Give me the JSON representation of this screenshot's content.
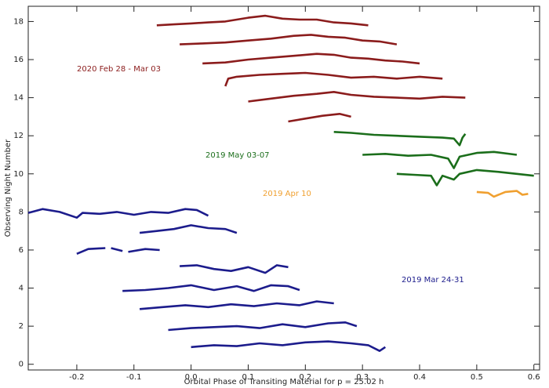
{
  "chart_data": {
    "type": "line",
    "x_label": "Orbital Phase of Transiting Material for p = 25.02 h",
    "y_label": "Observing Night Number",
    "xlim": [
      -0.285,
      0.61
    ],
    "ylim": [
      -0.3,
      18.8
    ],
    "xticks": [
      -0.2,
      -0.1,
      {
        "value": 0,
        "label": "0.0"
      },
      0.1,
      0.2,
      0.3,
      0.4,
      0.5,
      0.6
    ],
    "yticks": [
      0,
      2,
      4,
      6,
      8,
      10,
      12,
      14,
      16,
      18
    ],
    "series": [
      {
        "name": "2020 Feb 28 - Mar 03",
        "color": "#8b1c1c",
        "curves": [
          {
            "x": [
              -0.06,
              -0.03,
              0,
              0.03,
              0.06,
              0.1,
              0.13,
              0.16,
              0.19,
              0.22,
              0.25,
              0.28,
              0.31
            ],
            "values": [
              17.8,
              17.85,
              17.9,
              17.95,
              18.0,
              18.2,
              18.3,
              18.15,
              18.1,
              18.1,
              17.95,
              17.9,
              17.8
            ]
          },
          {
            "x": [
              -0.02,
              0.02,
              0.06,
              0.1,
              0.14,
              0.18,
              0.21,
              0.24,
              0.27,
              0.3,
              0.33,
              0.36
            ],
            "values": [
              16.8,
              16.85,
              16.9,
              17.0,
              17.1,
              17.25,
              17.3,
              17.2,
              17.15,
              17.0,
              16.95,
              16.8
            ]
          },
          {
            "x": [
              0.02,
              0.06,
              0.1,
              0.14,
              0.18,
              0.22,
              0.25,
              0.28,
              0.31,
              0.34,
              0.37,
              0.4
            ],
            "values": [
              15.8,
              15.85,
              16.0,
              16.1,
              16.2,
              16.3,
              16.25,
              16.1,
              16.05,
              15.95,
              15.9,
              15.8
            ]
          },
          {
            "x": [
              0.06,
              0.065,
              0.08,
              0.12,
              0.16,
              0.2,
              0.24,
              0.28,
              0.32,
              0.36,
              0.4,
              0.44
            ],
            "values": [
              14.6,
              15.0,
              15.1,
              15.2,
              15.25,
              15.3,
              15.2,
              15.05,
              15.1,
              15.0,
              15.1,
              15.0
            ]
          },
          {
            "x": [
              0.1,
              0.14,
              0.18,
              0.22,
              0.25,
              0.28,
              0.32,
              0.36,
              0.4,
              0.44,
              0.48
            ],
            "values": [
              13.8,
              13.95,
              14.1,
              14.2,
              14.3,
              14.15,
              14.05,
              14.0,
              13.95,
              14.05,
              14.0
            ]
          },
          {
            "x": [
              0.17,
              0.2,
              0.23,
              0.26,
              0.28
            ],
            "values": [
              12.75,
              12.9,
              13.05,
              13.15,
              13.0
            ]
          }
        ]
      },
      {
        "name": "2019 May 03-07",
        "color": "#1b6e1b",
        "curves": [
          {
            "x": [
              0.25,
              0.28,
              0.32,
              0.36,
              0.4,
              0.44,
              0.46,
              0.47,
              0.475,
              0.48
            ],
            "values": [
              12.2,
              12.15,
              12.05,
              12.0,
              11.95,
              11.9,
              11.85,
              11.5,
              11.9,
              12.1
            ]
          },
          {
            "x": [
              0.3,
              0.34,
              0.38,
              0.42,
              0.45,
              0.46,
              0.47,
              0.5,
              0.53,
              0.57
            ],
            "values": [
              11.0,
              11.05,
              10.95,
              11.0,
              10.8,
              10.3,
              10.9,
              11.1,
              11.15,
              11.0
            ]
          },
          {
            "x": [
              0.36,
              0.39,
              0.42,
              0.43,
              0.44,
              0.46,
              0.47,
              0.5,
              0.54,
              0.57,
              0.6
            ],
            "values": [
              10.0,
              9.95,
              9.9,
              9.4,
              9.9,
              9.7,
              10.0,
              10.2,
              10.1,
              10.0,
              9.9
            ]
          }
        ]
      },
      {
        "name": "2019 Apr 10",
        "color": "#f0a030",
        "curves": [
          {
            "x": [
              0.5,
              0.52,
              0.53,
              0.55,
              0.57,
              0.58,
              0.59
            ],
            "values": [
              9.05,
              9.0,
              8.8,
              9.05,
              9.1,
              8.9,
              8.95
            ]
          }
        ]
      },
      {
        "name": "2019 Mar 24-31",
        "color": "#1c1c8c",
        "curves": [
          {
            "x": [
              -0.285,
              -0.26,
              -0.23,
              -0.2,
              -0.19,
              -0.16,
              -0.13,
              -0.1,
              -0.07,
              -0.04,
              -0.01,
              0.01,
              0.03
            ],
            "values": [
              7.95,
              8.15,
              8.0,
              7.7,
              7.95,
              7.9,
              8.0,
              7.85,
              8.0,
              7.95,
              8.15,
              8.1,
              7.8
            ]
          },
          {
            "x": [
              -0.09,
              -0.06,
              -0.03,
              0,
              0.03,
              0.06,
              0.08
            ],
            "values": [
              6.9,
              7.0,
              7.1,
              7.3,
              7.15,
              7.1,
              6.9
            ]
          },
          {
            "x": [
              -0.2,
              -0.18,
              -0.15,
              null,
              -0.14,
              -0.12,
              null,
              -0.11,
              -0.08,
              -0.055
            ],
            "values": [
              5.8,
              6.05,
              6.1,
              null,
              6.1,
              5.95,
              null,
              5.9,
              6.05,
              6.0
            ]
          },
          {
            "x": [
              -0.02,
              0.01,
              0.04,
              0.07,
              0.1,
              0.13,
              0.15,
              0.17
            ],
            "values": [
              5.15,
              5.2,
              5.0,
              4.9,
              5.1,
              4.8,
              5.2,
              5.1
            ]
          },
          {
            "x": [
              -0.12,
              -0.08,
              -0.04,
              0,
              0.04,
              0.08,
              0.11,
              0.14,
              0.17,
              0.19
            ],
            "values": [
              3.85,
              3.9,
              4.0,
              4.15,
              3.9,
              4.1,
              3.85,
              4.15,
              4.1,
              3.9
            ]
          },
          {
            "x": [
              -0.09,
              -0.05,
              -0.01,
              0.03,
              0.07,
              0.11,
              0.15,
              0.19,
              0.22,
              0.25
            ],
            "values": [
              2.9,
              3.0,
              3.1,
              3.0,
              3.15,
              3.05,
              3.2,
              3.1,
              3.3,
              3.2
            ]
          },
          {
            "x": [
              -0.04,
              0,
              0.04,
              0.08,
              0.12,
              0.16,
              0.2,
              0.24,
              0.27,
              0.29
            ],
            "values": [
              1.8,
              1.9,
              1.95,
              2.0,
              1.9,
              2.1,
              1.95,
              2.15,
              2.2,
              2.0
            ]
          },
          {
            "x": [
              0,
              0.04,
              0.08,
              0.12,
              0.16,
              0.2,
              0.24,
              0.28,
              0.31,
              0.33,
              0.34
            ],
            "values": [
              0.9,
              1.0,
              0.95,
              1.1,
              1.0,
              1.15,
              1.2,
              1.1,
              1.0,
              0.7,
              0.9
            ]
          }
        ]
      }
    ]
  }
}
